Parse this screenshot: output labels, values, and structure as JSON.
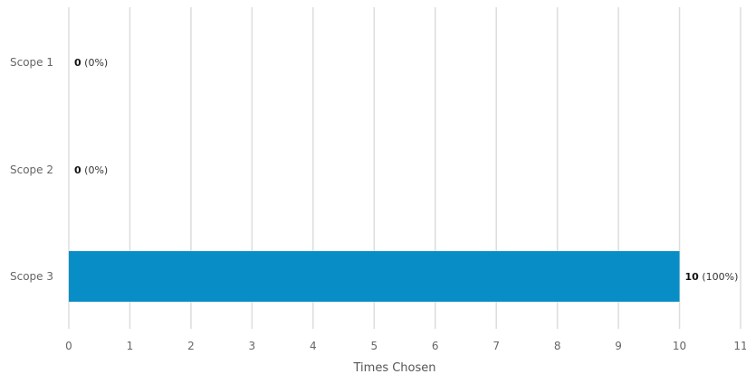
{
  "chart_data": {
    "type": "bar",
    "orientation": "horizontal",
    "categories": [
      "Scope 1",
      "Scope 2",
      "Scope 3"
    ],
    "values": [
      0,
      0,
      10
    ],
    "percent_labels": [
      "(0%)",
      "(0%)",
      "(100%)"
    ],
    "xlabel": "Times Chosen",
    "xlim": [
      0,
      11
    ],
    "xticks": [
      "0",
      "1",
      "2",
      "3",
      "4",
      "5",
      "6",
      "7",
      "8",
      "9",
      "10",
      "11"
    ],
    "grid": true,
    "bar_color": "#088DC6",
    "grid_color": "#DDDDDD"
  }
}
